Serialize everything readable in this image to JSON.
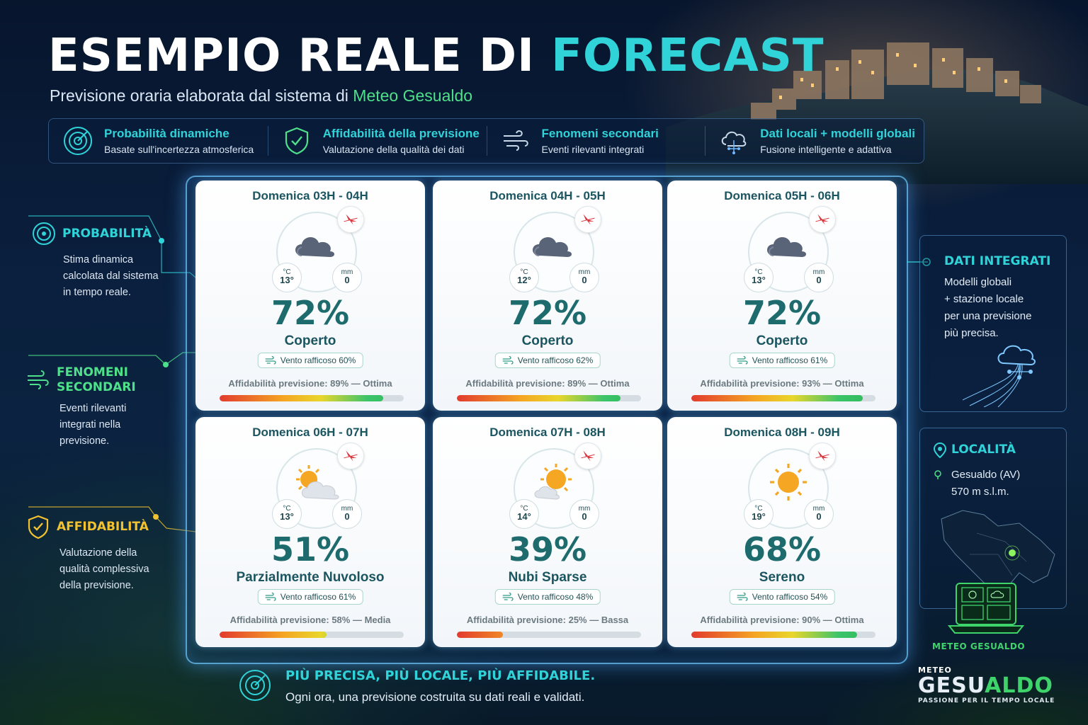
{
  "header": {
    "title_main": "ESEMPIO REALE DI ",
    "title_accent": "FORECAST",
    "subtitle_main": "Previsione oraria elaborata dal sistema di ",
    "subtitle_accent": "Meteo Gesualdo"
  },
  "features": [
    {
      "icon": "target-icon",
      "title": "Probabilità dinamiche",
      "text": "Basate sull'incertezza atmosferica"
    },
    {
      "icon": "shield-check-icon",
      "title": "Affidabilità della previsione",
      "text": "Valutazione della qualità dei dati"
    },
    {
      "icon": "wind-icon",
      "title": "Fenomeni secondari",
      "text": "Eventi rilevanti integrati"
    },
    {
      "icon": "cloud-network-icon",
      "title": "Dati locali + modelli globali",
      "text": "Fusione intelligente e adattiva"
    }
  ],
  "left_panels": [
    {
      "icon": "target-icon",
      "title": "PROBABILITÀ",
      "text": [
        "Stima dinamica",
        "calcolata dal sistema",
        "in tempo reale."
      ],
      "color": "#2fd3d8"
    },
    {
      "icon": "wind-icon",
      "title_lines": [
        "FENOMENI",
        "SECONDARI"
      ],
      "text": [
        "Eventi rilevanti",
        "integrati nella",
        "previsione."
      ],
      "color": "#4ee08a"
    },
    {
      "icon": "shield-check-icon",
      "title": "AFFIDABILITÀ",
      "text": [
        "Valutazione della",
        "qualità complessiva",
        "della previsione."
      ],
      "color": "#f2c230"
    }
  ],
  "cards": [
    {
      "header": "Domenica 03H - 04H",
      "icon": "cloud",
      "temp_unit": "°C",
      "temp": "13°",
      "rain_unit": "mm",
      "rain": "0",
      "pct": "72%",
      "condition": "Coperto",
      "wind": "Vento rafficoso 60%",
      "reliability": "Affidabilità previsione: 89% — Ottima",
      "reliability_value": 0.89
    },
    {
      "header": "Domenica 04H - 05H",
      "icon": "cloud",
      "temp_unit": "°C",
      "temp": "12°",
      "rain_unit": "mm",
      "rain": "0",
      "pct": "72%",
      "condition": "Coperto",
      "wind": "Vento rafficoso 62%",
      "reliability": "Affidabilità previsione: 89% — Ottima",
      "reliability_value": 0.89
    },
    {
      "header": "Domenica 05H - 06H",
      "icon": "cloud",
      "temp_unit": "°C",
      "temp": "13°",
      "rain_unit": "mm",
      "rain": "0",
      "pct": "72%",
      "condition": "Coperto",
      "wind": "Vento rafficoso 61%",
      "reliability": "Affidabilità previsione: 93% — Ottima",
      "reliability_value": 0.93
    },
    {
      "header": "Domenica 06H - 07H",
      "icon": "sun-cloud",
      "temp_unit": "°C",
      "temp": "13°",
      "rain_unit": "mm",
      "rain": "0",
      "pct": "51%",
      "condition": "Parzialmente Nuvoloso",
      "wind": "Vento rafficoso 61%",
      "reliability": "Affidabilità previsione: 58% — Media",
      "reliability_value": 0.58
    },
    {
      "header": "Domenica 07H - 08H",
      "icon": "sun-small-cloud",
      "temp_unit": "°C",
      "temp": "14°",
      "rain_unit": "mm",
      "rain": "0",
      "pct": "39%",
      "condition": "Nubi Sparse",
      "wind": "Vento rafficoso 48%",
      "reliability": "Affidabilità previsione: 25% — Bassa",
      "reliability_value": 0.25
    },
    {
      "header": "Domenica 08H - 09H",
      "icon": "sun",
      "temp_unit": "°C",
      "temp": "19°",
      "rain_unit": "mm",
      "rain": "0",
      "pct": "68%",
      "condition": "Sereno",
      "wind": "Vento rafficoso 54%",
      "reliability": "Affidabilità previsione: 90% — Ottima",
      "reliability_value": 0.9
    }
  ],
  "right_panels": {
    "integrated": {
      "title": "DATI INTEGRATI",
      "text": [
        "Modelli globali",
        "+ stazione locale",
        "per una previsione",
        "più precisa."
      ]
    },
    "location": {
      "title": "LOCALITÀ",
      "place": "Gesualdo (AV)",
      "altitude": "570 m s.l.m."
    }
  },
  "footer": {
    "title": "PIÙ PRECISA, PIÙ LOCALE, PIÙ AFFIDABILE.",
    "text": "Ogni ora, una previsione costruita su dati reali e validati."
  },
  "brand": {
    "logo_top": "METEO GESUALDO",
    "meteo": "METEO",
    "name_white": "GESU",
    "name_green": "ALDO",
    "tagline": "PASSIONE PER IL TEMPO LOCALE"
  },
  "colors": {
    "accent_cyan": "#2fd3d8",
    "accent_green": "#4ee08a",
    "accent_yellow": "#f2c230",
    "card_text": "#1e6b6e"
  }
}
